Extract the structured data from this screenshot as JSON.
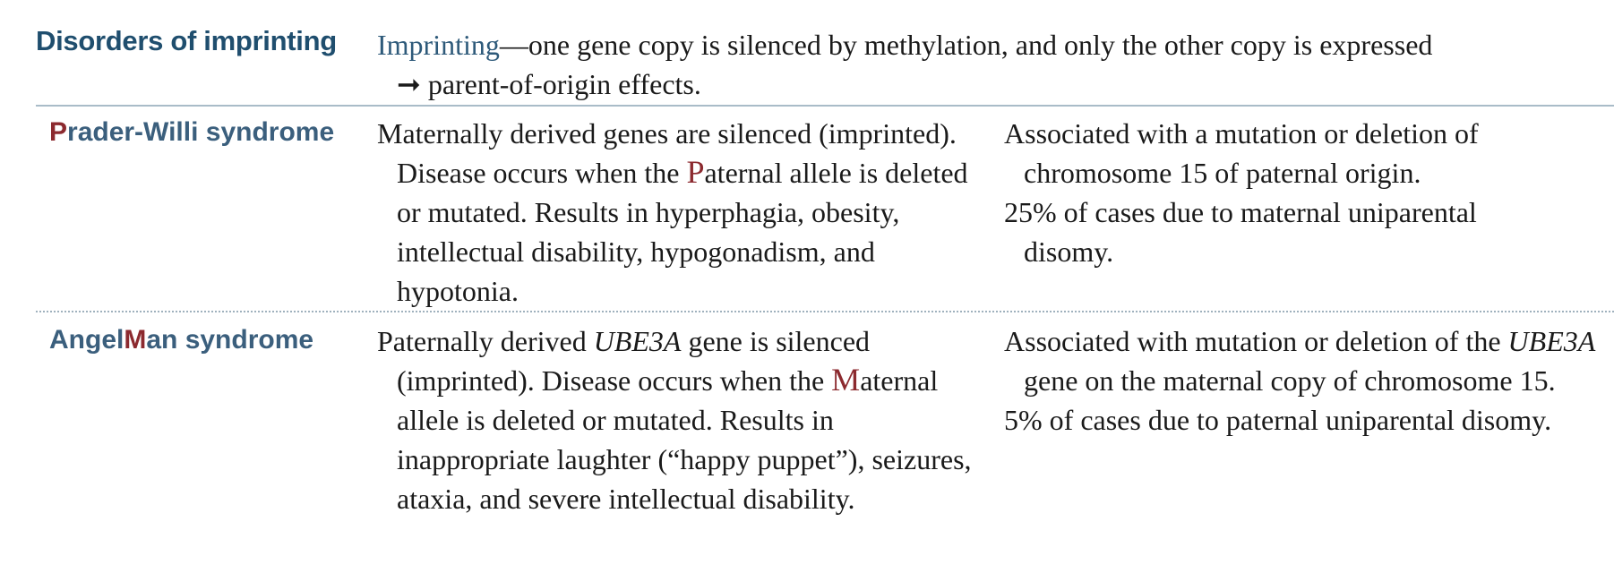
{
  "header": {
    "section_title": "Disorders of imprinting",
    "intro_term": "Imprinting",
    "intro_rest": "—one gene copy is silenced by methylation, and only the other copy is expressed",
    "intro_line2": "➞ parent-of-origin effects."
  },
  "colors": {
    "title_blue": "#1f4e6e",
    "label_blue": "#3b5f7d",
    "accent_red": "#8c2a2f",
    "rule": "#a9bcc8"
  },
  "rows": [
    {
      "name_first_letter": "P",
      "name_rest": "rader-Willi syndrome",
      "description": {
        "line1": "Maternally derived genes are silenced (imprinted).",
        "pre": "Disease occurs when the ",
        "highlight": "P",
        "post": "aternal allele is deleted or mutated. Results in hyperphagia, obesity, intellectual disability, hypogonadism, and hypotonia."
      },
      "notes": [
        "Associated with a mutation or deletion of chromosome 15 of paternal origin.",
        "25% of cases due to maternal uniparental disomy."
      ]
    },
    {
      "name_part1": "Angel",
      "name_highlight": "M",
      "name_part2": "an syndrome",
      "description": {
        "pre": "Paternally derived ",
        "gene": "UBE3A",
        "mid": " gene is silenced (imprinted). Disease occurs when the ",
        "highlight": "M",
        "post": "aternal allele is deleted or mutated. Results in inappropriate laughter (“happy puppet”), seizures, ataxia, and severe intellectual disability."
      },
      "notes": [
        {
          "pre": "Associated with mutation or deletion of the ",
          "gene": "UBE3A",
          "post": " gene on the maternal copy of chromosome 15."
        },
        "5% of cases due to paternal uniparental disomy."
      ]
    }
  ]
}
